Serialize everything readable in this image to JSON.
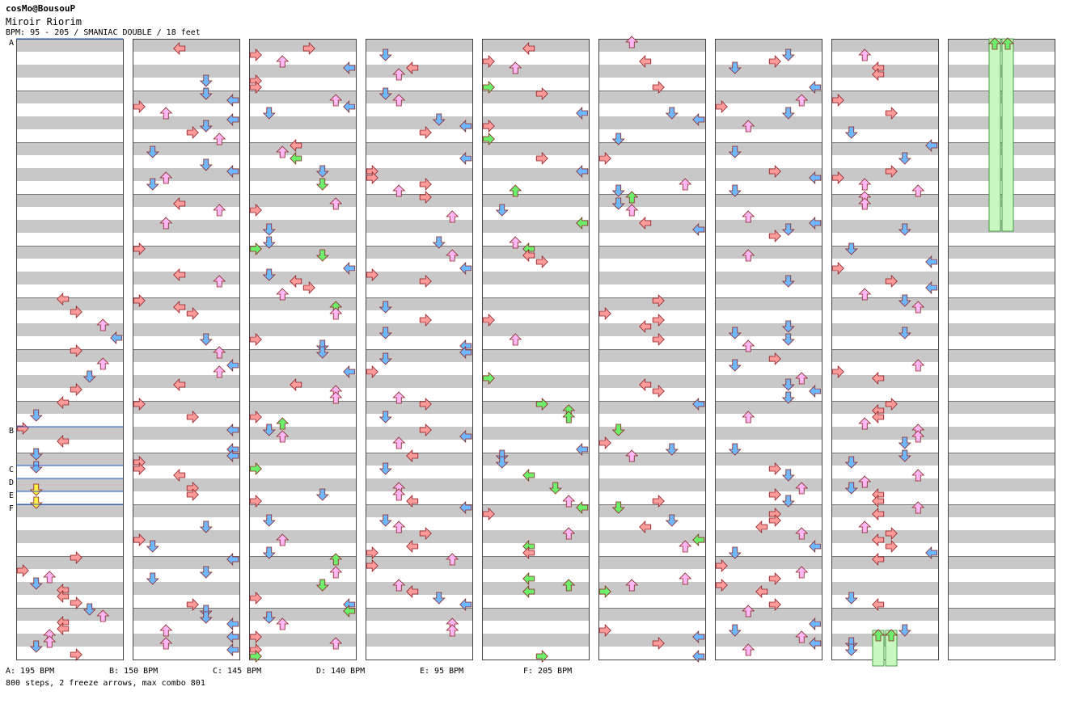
{
  "header": {
    "artist": "cosMo@BousouP",
    "title": "Miroir Riorim",
    "meta": "BPM: 95 - 205 / SMANIAC DOUBLE / 18 feet"
  },
  "bpm_markers": [
    "A",
    "B",
    "C",
    "D",
    "E",
    "F"
  ],
  "legend": [
    {
      "label": "A: 195 BPM"
    },
    {
      "label": "B: 150 BPM"
    },
    {
      "label": "C: 145 BPM"
    },
    {
      "label": "D: 140 BPM"
    },
    {
      "label": "E: 95 BPM"
    },
    {
      "label": "F: 205 BPM"
    }
  ],
  "summary": "800 steps, 2 freeze arrows, max combo 801",
  "colors": {
    "stripe": "#c8c8c8",
    "border": "#444444",
    "bpm_line": "#2255cc",
    "red_arrow": "#ff9a9a",
    "blue_arrow": "#6fb8ff",
    "pink_arrow": "#ffb6f4",
    "green_arrow": "#6cf06c",
    "yellow_arrow": "#fff04a",
    "freeze": "#c8f8c0"
  },
  "chart_info": {
    "columns": 9,
    "measures_per_column": 12,
    "total_steps": 800,
    "freeze_arrows": 2,
    "max_combo": 801
  }
}
